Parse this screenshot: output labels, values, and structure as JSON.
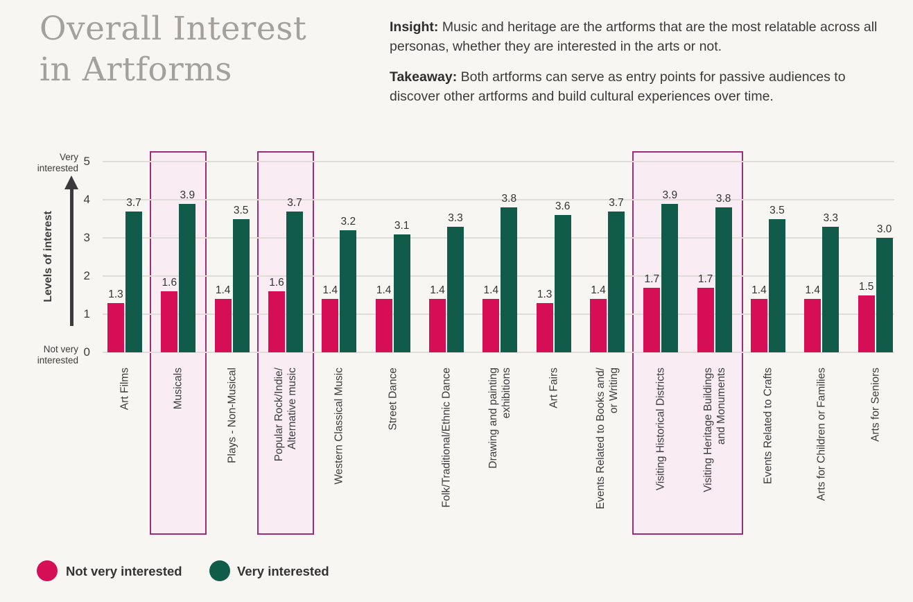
{
  "header": {
    "title_line1": "Overall Interest",
    "title_line2": "in Artforms",
    "insight_label": "Insight:",
    "insight_text": " Music and heritage are the artforms that are the most relatable across all personas, whether they are interested in the arts or not.",
    "takeaway_label": "Takeaway:",
    "takeaway_text": "  Both artforms can serve as entry points for passive audiences to discover other artforms and build cultural experiences over time."
  },
  "chart_data": {
    "type": "bar",
    "title": "Overall Interest in Artforms",
    "ylabel": "Levels of interest",
    "y_axis_top_label": "Very\ninterested",
    "y_axis_bottom_label": "Not very\ninterested",
    "ylim": [
      0,
      5
    ],
    "yticks": [
      0,
      1,
      2,
      3,
      4,
      5
    ],
    "grid": true,
    "legend_position": "bottom-left",
    "categories": [
      "Art Films",
      "Musicals",
      "Plays - Non-Musical",
      "Popular Rock/Indie/\nAlternative music",
      "Western Classical Music",
      "Street Dance",
      "Folk/Traditional/Ethnic Dance",
      "Drawing and painting\nexhibitions",
      "Art Fairs",
      "Events Related to Books and/\nor Writing",
      "Visiting Historical Districts",
      "Visiting Heritage Buildings\nand Monuments",
      "Events Related to Crafts",
      "Arts for Children or Families",
      "Arts for Seniors"
    ],
    "series": [
      {
        "name": "Not very interested",
        "color": "#d50e56",
        "values": [
          1.3,
          1.6,
          1.4,
          1.6,
          1.4,
          1.4,
          1.4,
          1.4,
          1.3,
          1.4,
          1.7,
          1.7,
          1.4,
          1.4,
          1.5
        ]
      },
      {
        "name": "Very interested",
        "color": "#115b4a",
        "values": [
          3.7,
          3.9,
          3.5,
          3.7,
          3.2,
          3.1,
          3.3,
          3.8,
          3.6,
          3.7,
          3.9,
          3.8,
          3.5,
          3.3,
          3.0
        ]
      }
    ],
    "highlights": [
      {
        "from": 1,
        "to": 1
      },
      {
        "from": 3,
        "to": 3
      },
      {
        "from": 10,
        "to": 11
      }
    ],
    "highlight_fill": "#f9edf3",
    "highlight_border": "#9c2e75"
  },
  "legend": {
    "items": [
      {
        "label": "Not very interested",
        "color": "#d50e56"
      },
      {
        "label": "Very interested",
        "color": "#115b4a"
      }
    ]
  }
}
